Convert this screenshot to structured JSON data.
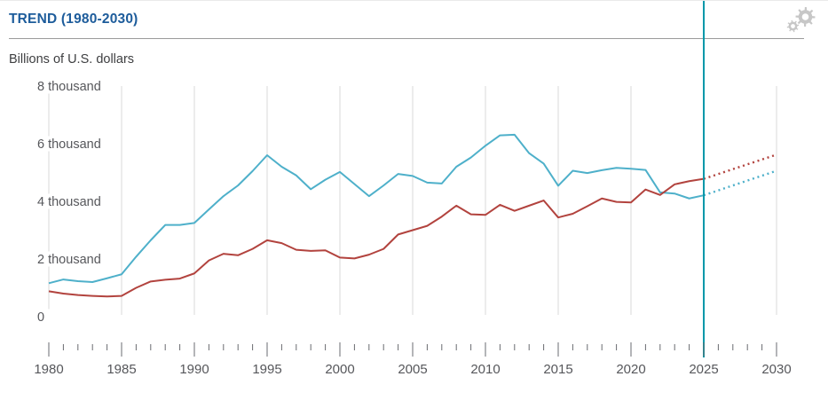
{
  "header": {
    "title": "TREND (1980-2030)",
    "settings_icon": "gear-icon"
  },
  "chart_data": {
    "type": "line",
    "title": "TREND (1980-2030)",
    "unit_label": "Billions of U.S. dollars",
    "grid": "vertical-only",
    "legend": "none",
    "x_axis": {
      "min": 1980,
      "max": 2030,
      "major_step": 5,
      "minor_step": 1,
      "tick_labels": [
        "1980",
        "1985",
        "1990",
        "1995",
        "2000",
        "2005",
        "2010",
        "2015",
        "2020",
        "2025",
        "2030"
      ]
    },
    "y_axis": {
      "min": 0,
      "max": 8000,
      "step": 2000,
      "tick_labels": [
        "0",
        "2 thousand",
        "4 thousand",
        "6 thousand",
        "8 thousand"
      ]
    },
    "forecast_divider_year": 2025,
    "years": [
      1980,
      1981,
      1982,
      1983,
      1984,
      1985,
      1986,
      1987,
      1988,
      1989,
      1990,
      1991,
      1992,
      1993,
      1994,
      1995,
      1996,
      1997,
      1998,
      1999,
      2000,
      2001,
      2002,
      2003,
      2004,
      2005,
      2006,
      2007,
      2008,
      2009,
      2010,
      2011,
      2012,
      2013,
      2014,
      2015,
      2016,
      2017,
      2018,
      2019,
      2020,
      2021,
      2022,
      2023,
      2024,
      2025
    ],
    "series": [
      {
        "name": "blue-series",
        "color": "#4eb0ca",
        "values": [
          1160,
          1290,
          1230,
          1200,
          1330,
          1470,
          2080,
          2650,
          3180,
          3180,
          3250,
          3720,
          4180,
          4550,
          5050,
          5600,
          5200,
          4900,
          4420,
          4750,
          5020,
          4600,
          4180,
          4550,
          4950,
          4880,
          4650,
          4620,
          5200,
          5520,
          5930,
          6290,
          6310,
          5670,
          5310,
          4540,
          5060,
          4980,
          5080,
          5160,
          5130,
          5090,
          4310,
          4270,
          4100,
          4210
        ],
        "projection": {
          "style": "dotted",
          "years": [
            2025,
            2030
          ],
          "values": [
            4210,
            5060
          ]
        }
      },
      {
        "name": "red-series",
        "color": "#b2433e",
        "values": [
          880,
          800,
          750,
          720,
          700,
          720,
          1000,
          1220,
          1280,
          1320,
          1500,
          1950,
          2180,
          2130,
          2350,
          2650,
          2550,
          2320,
          2280,
          2300,
          2050,
          2020,
          2150,
          2350,
          2850,
          3000,
          3150,
          3470,
          3850,
          3550,
          3530,
          3880,
          3670,
          3850,
          4030,
          3440,
          3570,
          3830,
          4100,
          3980,
          3960,
          4410,
          4220,
          4590,
          4700,
          4780
        ],
        "projection": {
          "style": "dotted",
          "years": [
            2025,
            2030
          ],
          "values": [
            4780,
            5620
          ]
        }
      }
    ],
    "colors": {
      "gridline": "#dadada",
      "tick": "#6a6b70",
      "axis_text": "#56575b",
      "forecast_line": "#0098a9",
      "title": "#1d5c9b",
      "gear": "#c7c7c7"
    }
  }
}
